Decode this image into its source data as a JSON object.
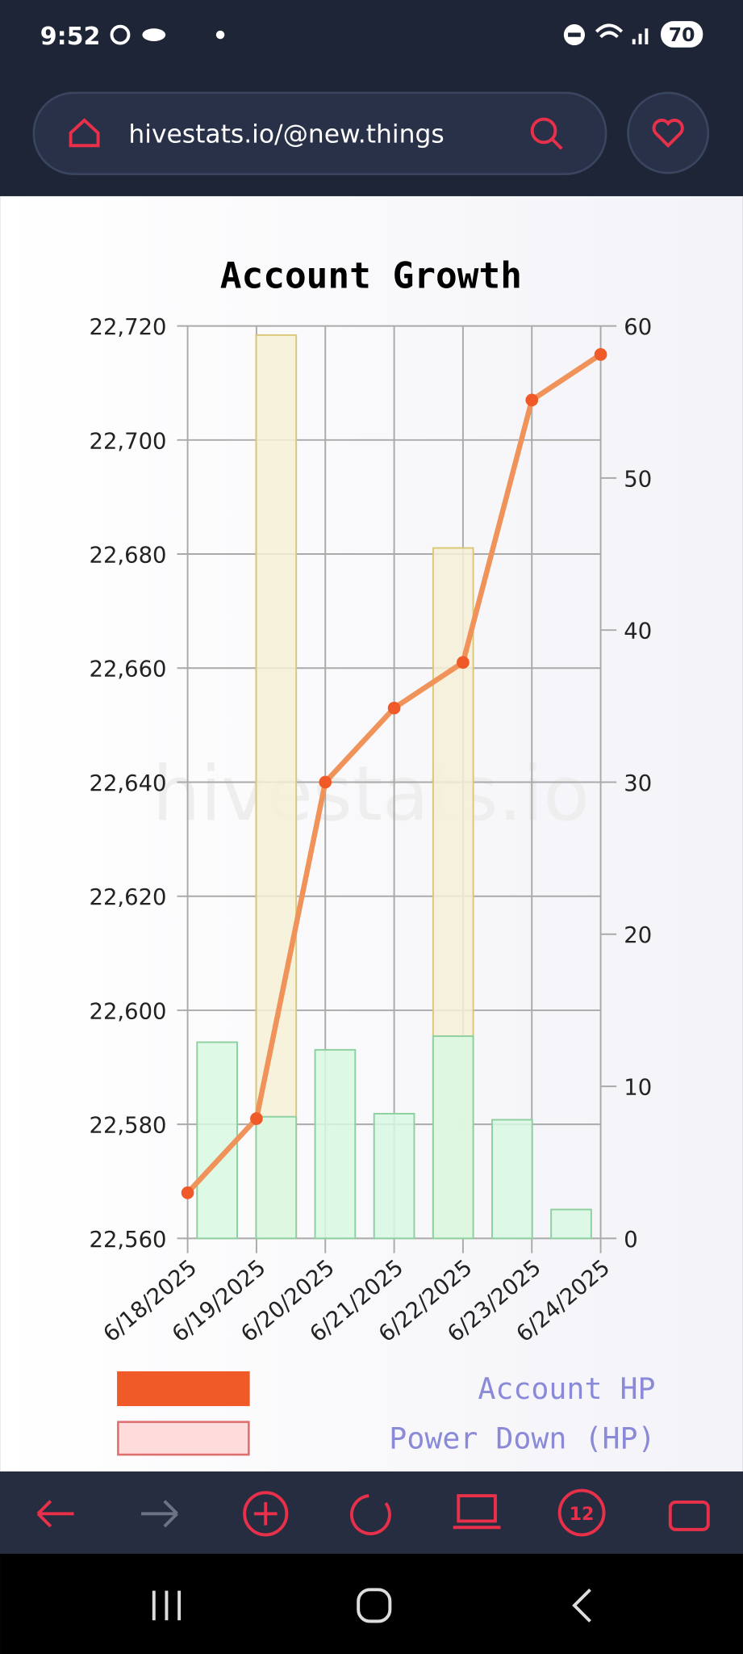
{
  "status_bar": {
    "time": "9:52",
    "battery": "70"
  },
  "browser": {
    "url": "hivestats.io/@new.things",
    "tab_count": "12"
  },
  "watermark": "hivestats.io",
  "chart_data": {
    "type": "combo",
    "title": "Account Growth",
    "categories": [
      "6/18/2025",
      "6/19/2025",
      "6/20/2025",
      "6/21/2025",
      "6/22/2025",
      "6/23/2025",
      "6/24/2025"
    ],
    "ylim": [
      22560,
      22720
    ],
    "yticks": [
      {
        "value": 22560,
        "label": "22,560"
      },
      {
        "value": 22580,
        "label": "22,580"
      },
      {
        "value": 22600,
        "label": "22,600"
      },
      {
        "value": 22620,
        "label": "22,620"
      },
      {
        "value": 22640,
        "label": "22,640"
      },
      {
        "value": 22660,
        "label": "22,660"
      },
      {
        "value": 22680,
        "label": "22,680"
      },
      {
        "value": 22700,
        "label": "22,700"
      },
      {
        "value": 22720,
        "label": "22,720"
      }
    ],
    "y2lim": [
      0,
      60
    ],
    "y2ticks": [
      0,
      10,
      20,
      30,
      40,
      50,
      60
    ],
    "grid": true,
    "series": [
      {
        "name": "Account HP",
        "type": "line",
        "color": "#f0935a",
        "legend_color": "#f05a28",
        "values": [
          22568,
          22581,
          22640,
          22653,
          22661,
          22707,
          22715
        ]
      },
      {
        "name": "Power Down (HP)",
        "type": "bar",
        "axis": "y2",
        "color": "#f6f0d6",
        "legend_color": "#ffdcdc",
        "values": [
          0,
          59.4,
          0,
          0,
          45.4,
          0,
          0
        ]
      },
      {
        "type": "bar",
        "axis": "y2",
        "color": "#d8f8e2",
        "values": [
          12.9,
          8.0,
          12.4,
          8.2,
          13.3,
          7.8,
          1.9
        ]
      }
    ]
  }
}
